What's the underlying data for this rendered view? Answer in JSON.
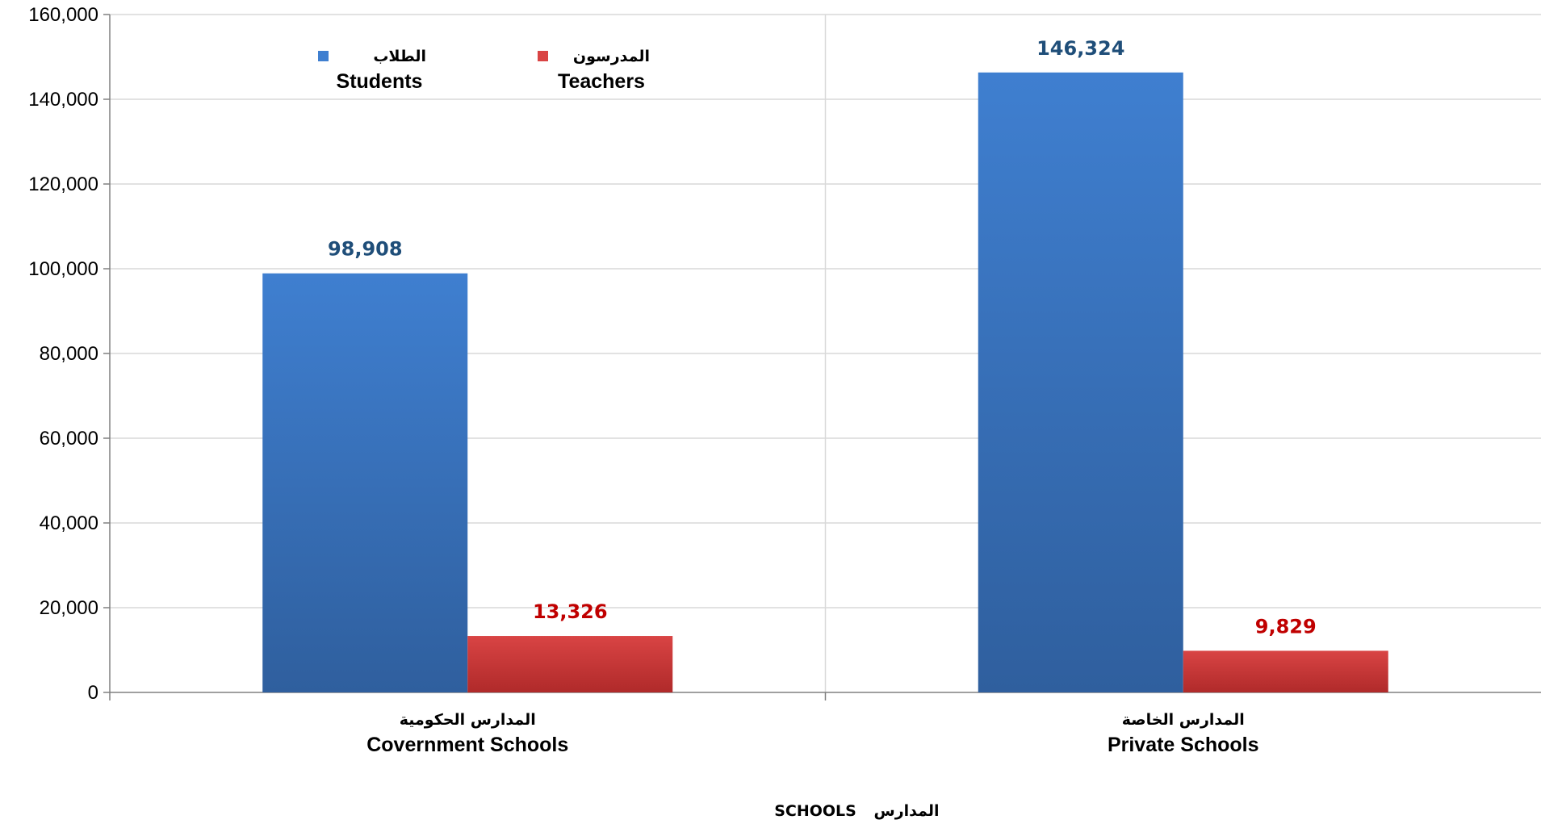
{
  "chart_data": {
    "type": "bar",
    "categories": [
      {
        "ar": "المدارس الحكومية",
        "en": "Covernment Schools"
      },
      {
        "ar": "المدارس الخاصة",
        "en": "Private Schools"
      }
    ],
    "series": [
      {
        "name_ar": "الطلاب",
        "name_en": "Students",
        "values": [
          98908,
          146324
        ],
        "labels": [
          "98,908",
          "146,324"
        ],
        "color": "#3F7FD0",
        "color_dark": "#2F5F9E",
        "label_color": "#1F4E79"
      },
      {
        "name_ar": "المدرسون",
        "name_en": "Teachers",
        "values": [
          13326,
          9829
        ],
        "labels": [
          "13,326",
          "9,829"
        ],
        "color": "#D94444",
        "color_dark": "#B02A2A",
        "label_color": "#C00000"
      }
    ],
    "y_ticks": [
      "0",
      "20,000",
      "40,000",
      "60,000",
      "80,000",
      "100,000",
      "120,000",
      "140,000",
      "160,000"
    ],
    "ylim": [
      0,
      160000
    ],
    "xlabel_ar": "المدارس",
    "xlabel_en": "SCHOOLS",
    "grid": true,
    "legend_position": "top-left"
  }
}
